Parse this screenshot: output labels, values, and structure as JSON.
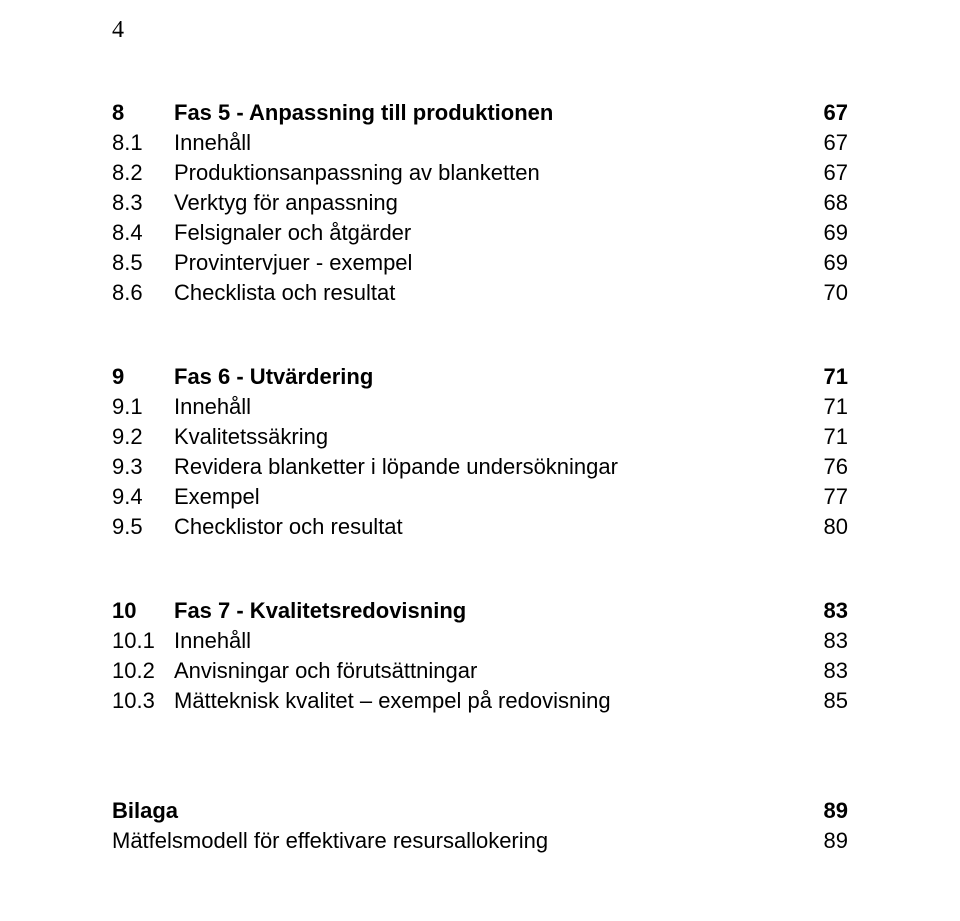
{
  "page_number": "4",
  "sections": [
    {
      "heading": {
        "num": "8",
        "title": "Fas 5 - Anpassning till produktionen",
        "page": "67"
      },
      "items": [
        {
          "num": "8.1",
          "title": "Innehåll",
          "page": "67"
        },
        {
          "num": "8.2",
          "title": "Produktionsanpassning av blanketten",
          "page": "67"
        },
        {
          "num": "8.3",
          "title": "Verktyg för anpassning",
          "page": "68"
        },
        {
          "num": "8.4",
          "title": "Felsignaler och åtgärder",
          "page": "69"
        },
        {
          "num": "8.5",
          "title": "Provintervjuer - exempel",
          "page": "69"
        },
        {
          "num": "8.6",
          "title": "Checklista och resultat",
          "page": "70"
        }
      ]
    },
    {
      "heading": {
        "num": "9",
        "title": "Fas 6 - Utvärdering",
        "page": "71"
      },
      "items": [
        {
          "num": "9.1",
          "title": "Innehåll",
          "page": "71"
        },
        {
          "num": "9.2",
          "title": "Kvalitetssäkring",
          "page": "71"
        },
        {
          "num": "9.3",
          "title": "Revidera blanketter i löpande undersökningar",
          "page": "76"
        },
        {
          "num": "9.4",
          "title": "Exempel",
          "page": "77"
        },
        {
          "num": "9.5",
          "title": "Checklistor och resultat",
          "page": "80"
        }
      ]
    },
    {
      "heading": {
        "num": "10",
        "title": "Fas 7 - Kvalitetsredovisning",
        "page": "83"
      },
      "items": [
        {
          "num": "10.1",
          "title": "Innehåll",
          "page": "83"
        },
        {
          "num": "10.2",
          "title": "Anvisningar och förutsättningar",
          "page": "83"
        },
        {
          "num": "10.3",
          "title": "Mätteknisk kvalitet – exempel på redovisning",
          "page": "85"
        }
      ]
    }
  ],
  "appendix": {
    "heading": {
      "title": "Bilaga",
      "page": "89"
    },
    "items": [
      {
        "title": "Mätfelsmodell för effektivare resursallokering",
        "page": "89"
      }
    ]
  }
}
